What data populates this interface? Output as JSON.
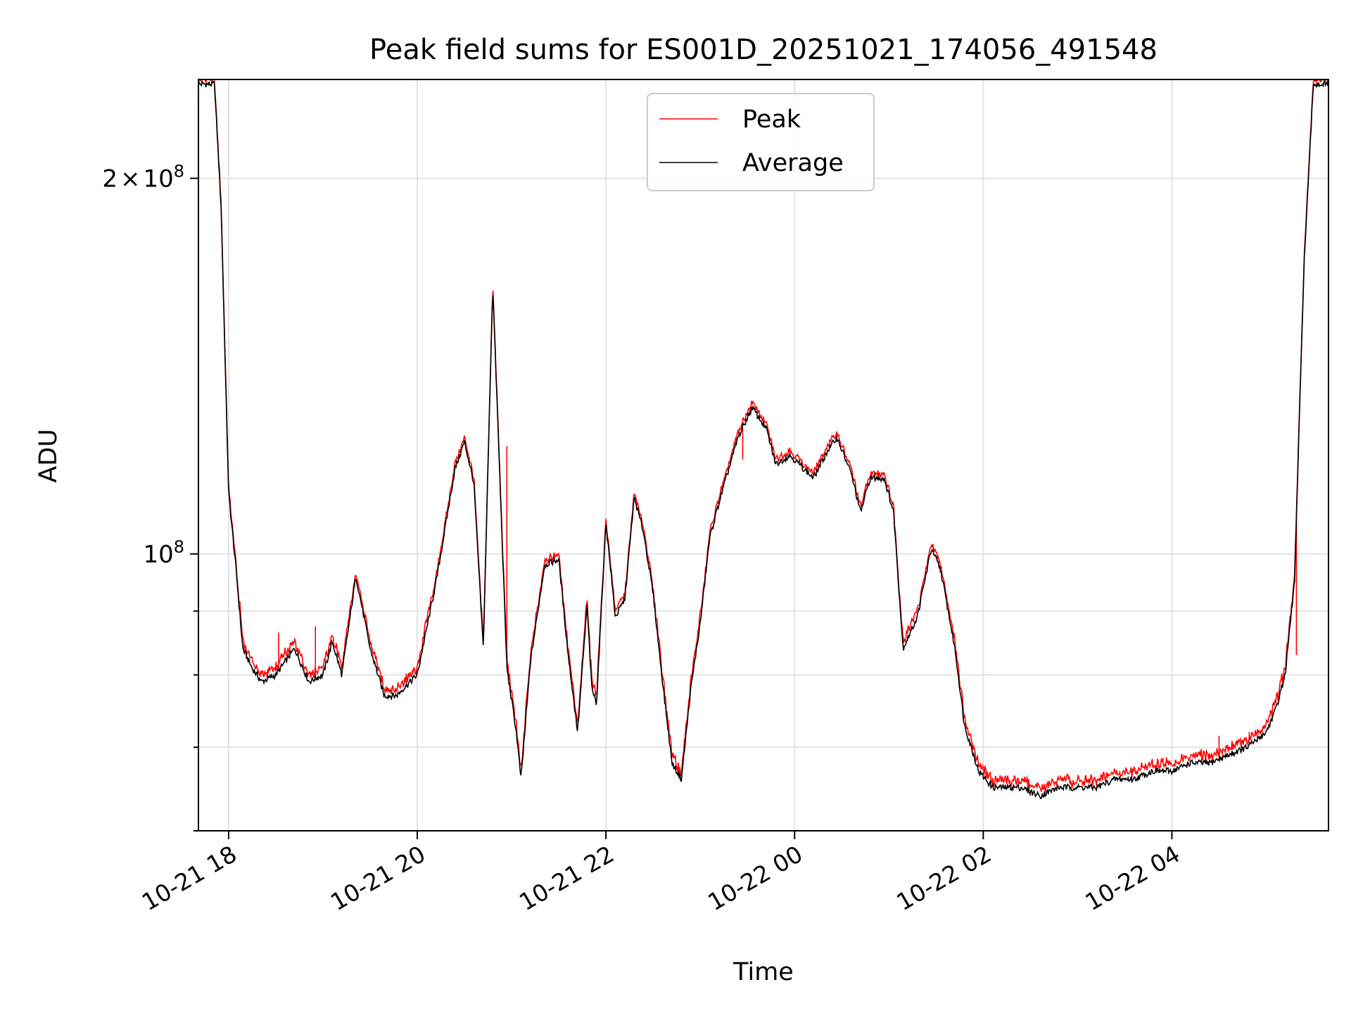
{
  "chart_data": {
    "type": "line",
    "title": "Peak field sums for ES001D_20251021_174056_491548",
    "xlabel": "Time",
    "ylabel": "ADU",
    "yscale": "log",
    "ylim": [
      60000000,
      240000000
    ],
    "xlim_hours": [
      17.68,
      29.66
    ],
    "x_ticks": [
      {
        "hour": 18,
        "label": "10-21 18"
      },
      {
        "hour": 20,
        "label": "10-21 20"
      },
      {
        "hour": 22,
        "label": "10-21 22"
      },
      {
        "hour": 24,
        "label": "10-22 00"
      },
      {
        "hour": 26,
        "label": "10-22 02"
      },
      {
        "hour": 28,
        "label": "10-22 04"
      }
    ],
    "y_major_ticks": [
      {
        "value": 100000000,
        "base": "10",
        "exp": "8"
      },
      {
        "value": 200000000,
        "mant": "2",
        "times": "×",
        "base": "10",
        "exp": "8"
      }
    ],
    "y_minor_ticks": [
      60000000,
      70000000,
      80000000,
      90000000
    ],
    "grid": true,
    "legend": {
      "position": "top-center",
      "entries": [
        "Peak",
        "Average"
      ]
    },
    "series": [
      {
        "name": "Average",
        "color": "#000000",
        "x_hours": [
          17.68,
          17.85,
          17.92,
          18.0,
          18.08,
          18.15,
          18.25,
          18.35,
          18.5,
          18.7,
          18.85,
          19.0,
          19.1,
          19.2,
          19.35,
          19.5,
          19.65,
          19.72,
          19.78,
          19.85,
          20.0,
          20.2,
          20.4,
          20.5,
          20.6,
          20.7,
          20.8,
          20.95,
          21.05,
          21.1,
          21.2,
          21.35,
          21.5,
          21.6,
          21.7,
          21.8,
          21.85,
          21.9,
          22.0,
          22.1,
          22.2,
          22.3,
          22.4,
          22.5,
          22.6,
          22.7,
          22.8,
          22.9,
          23.0,
          23.1,
          23.2,
          23.4,
          23.55,
          23.7,
          23.8,
          23.95,
          24.05,
          24.2,
          24.35,
          24.45,
          24.6,
          24.7,
          24.8,
          24.95,
          25.05,
          25.15,
          25.3,
          25.45,
          25.55,
          25.7,
          25.8,
          25.95,
          26.1,
          26.25,
          26.4,
          26.6,
          26.8,
          27.0,
          27.2,
          27.4,
          27.6,
          27.8,
          28.0,
          28.2,
          28.4,
          28.6,
          28.8,
          29.0,
          29.1,
          29.2,
          29.3,
          29.4,
          29.5,
          29.66
        ],
        "y": [
          238,
          238,
          190,
          112,
          97,
          84,
          81,
          79,
          80,
          84,
          79,
          80,
          85,
          80,
          96,
          84,
          77,
          77,
          77,
          78,
          80,
          95,
          117,
          123,
          114,
          84,
          164,
          81,
          72,
          66,
          82,
          98,
          99,
          83,
          72,
          91,
          78,
          76,
          106,
          89,
          92,
          111,
          104,
          93,
          79,
          68,
          66,
          78,
          88,
          103,
          110,
          124,
          131,
          126,
          118,
          120,
          118,
          115,
          121,
          124,
          116,
          108,
          115,
          115,
          108,
          84,
          89,
          101,
          97,
          84,
          73,
          67,
          65,
          65,
          65,
          64,
          65,
          65,
          65,
          66,
          66,
          67,
          67,
          68,
          68,
          69,
          70,
          72,
          75,
          80,
          95,
          170,
          238,
          238
        ]
      },
      {
        "name": "Peak",
        "color": "#ff0000",
        "spikes": [
          {
            "hour": 18.53,
            "value": 86.5
          },
          {
            "hour": 18.92,
            "value": 87.5
          },
          {
            "hour": 20.95,
            "value": 122
          },
          {
            "hour": 23.45,
            "value": 119
          },
          {
            "hour": 28.5,
            "value": 71.5
          },
          {
            "hour": 28.82,
            "value": 72
          },
          {
            "hour": 29.32,
            "value": 83
          }
        ]
      }
    ]
  }
}
